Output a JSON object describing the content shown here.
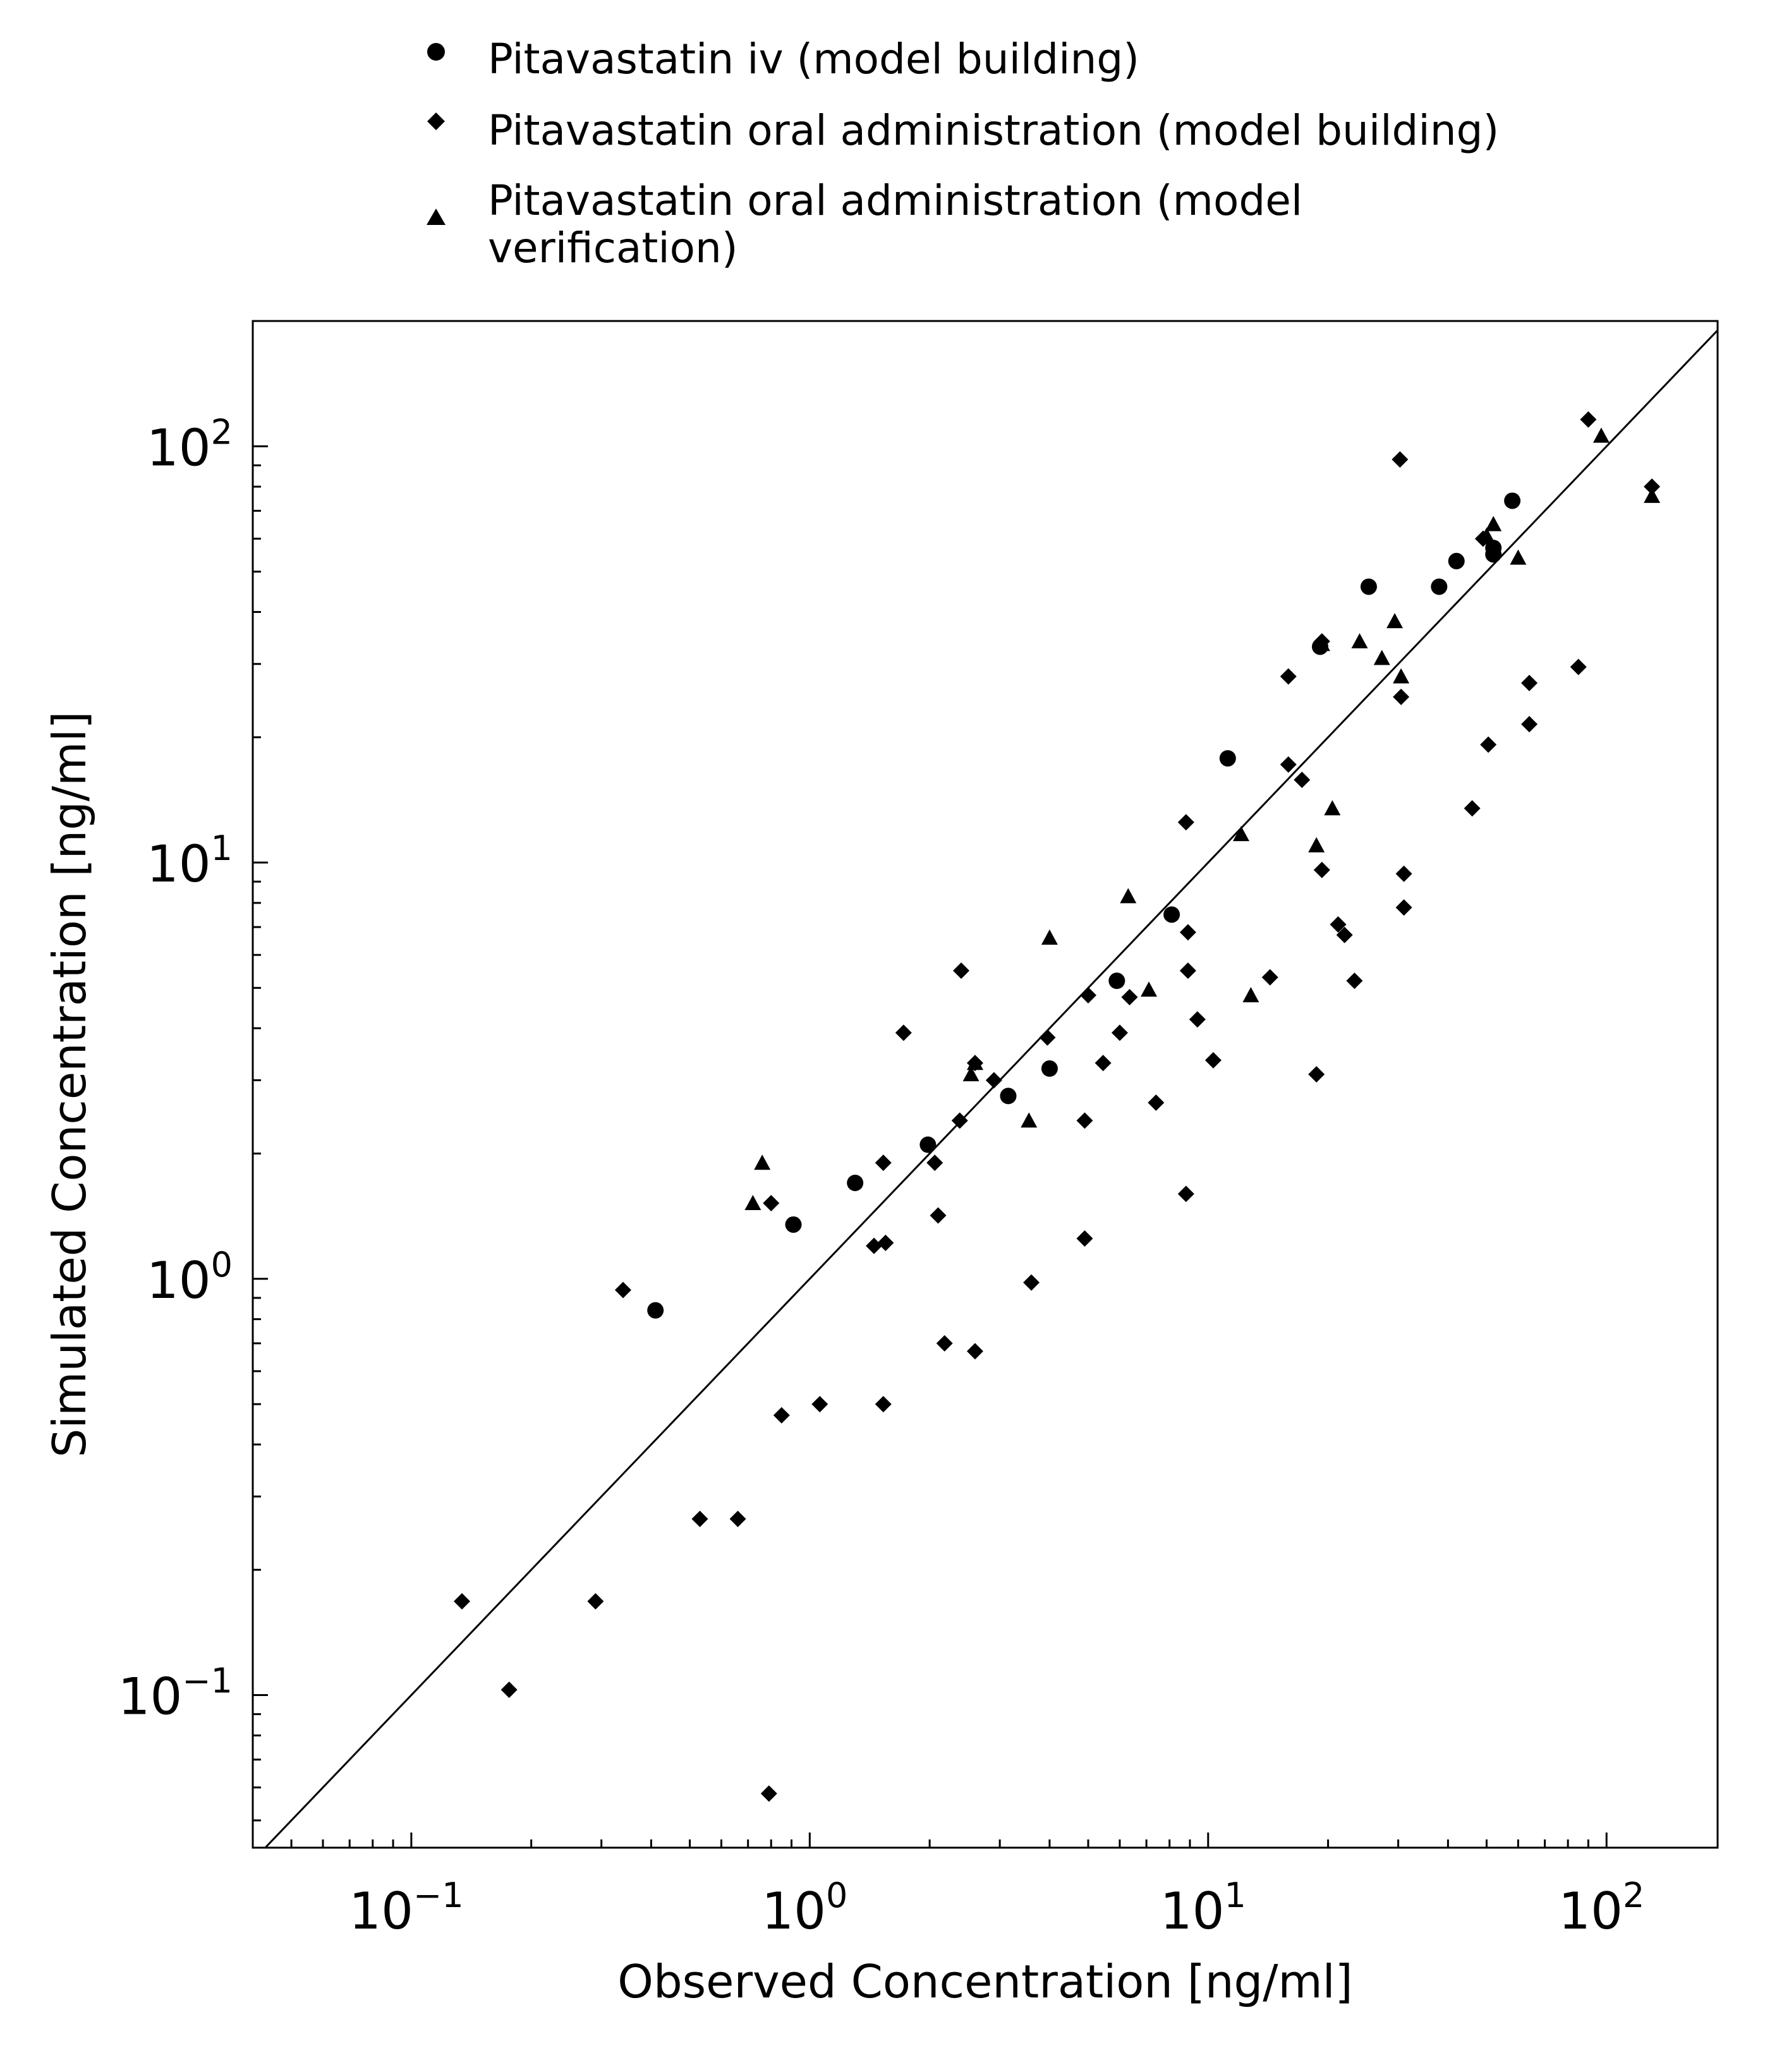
{
  "chart_data": {
    "type": "scatter",
    "title": "",
    "xlabel": "Observed Concentration [ng/ml]",
    "ylabel": "Simulated Concentration [ng/ml]",
    "xscale": "log",
    "yscale": "log",
    "xlim": [
      0.04,
      190
    ],
    "ylim": [
      0.043,
      200
    ],
    "grid": false,
    "legend_position": "above plot",
    "identity_line": true,
    "x_ticks": [
      {
        "base": "10",
        "exp": "−1",
        "value": 0.1
      },
      {
        "base": "10",
        "exp": "0",
        "value": 1
      },
      {
        "base": "10",
        "exp": "1",
        "value": 10
      },
      {
        "base": "10",
        "exp": "2",
        "value": 100
      }
    ],
    "y_ticks": [
      {
        "base": "10",
        "exp": "−1",
        "value": 0.1
      },
      {
        "base": "10",
        "exp": "0",
        "value": 1
      },
      {
        "base": "10",
        "exp": "1",
        "value": 10
      },
      {
        "base": "10",
        "exp": "2",
        "value": 100
      }
    ],
    "series": [
      {
        "name": "Pitavastatin iv (model building)",
        "marker": "circle",
        "color": "#000000",
        "points": [
          [
            0.41,
            0.84
          ],
          [
            0.91,
            1.35
          ],
          [
            1.3,
            1.7
          ],
          [
            1.98,
            2.1
          ],
          [
            3.15,
            2.75
          ],
          [
            4.0,
            3.2
          ],
          [
            5.9,
            5.2
          ],
          [
            8.1,
            7.5
          ],
          [
            11.2,
            17.8
          ],
          [
            19.1,
            33
          ],
          [
            25.3,
            46
          ],
          [
            38,
            46
          ],
          [
            42,
            53
          ],
          [
            52,
            55
          ],
          [
            52,
            57
          ],
          [
            58,
            74
          ]
        ]
      },
      {
        "name": "Pitavastatin oral administration (model building)",
        "marker": "diamond",
        "color": "#000000",
        "points": [
          [
            0.134,
            0.168
          ],
          [
            0.176,
            0.103
          ],
          [
            0.29,
            0.168
          ],
          [
            0.34,
            0.94
          ],
          [
            0.53,
            0.265
          ],
          [
            0.66,
            0.265
          ],
          [
            0.79,
            0.058
          ],
          [
            0.8,
            1.52
          ],
          [
            0.85,
            0.47
          ],
          [
            1.06,
            0.5
          ],
          [
            1.45,
            1.2
          ],
          [
            1.53,
            1.9
          ],
          [
            1.55,
            1.22
          ],
          [
            1.53,
            0.5
          ],
          [
            1.72,
            3.9
          ],
          [
            2.06,
            1.9
          ],
          [
            2.1,
            1.42
          ],
          [
            2.18,
            0.7
          ],
          [
            2.38,
            2.4
          ],
          [
            2.4,
            5.5
          ],
          [
            2.6,
            0.67
          ],
          [
            2.6,
            3.3
          ],
          [
            2.9,
            3.0
          ],
          [
            3.6,
            0.98
          ],
          [
            3.95,
            3.8
          ],
          [
            4.9,
            2.4
          ],
          [
            4.9,
            1.25
          ],
          [
            5.0,
            4.8
          ],
          [
            5.45,
            3.3
          ],
          [
            6.0,
            3.9
          ],
          [
            6.35,
            4.75
          ],
          [
            7.4,
            2.65
          ],
          [
            8.8,
            12.5
          ],
          [
            8.9,
            6.8
          ],
          [
            8.9,
            5.5
          ],
          [
            8.8,
            1.6
          ],
          [
            9.4,
            4.2
          ],
          [
            10.3,
            3.35
          ],
          [
            14.3,
            5.3
          ],
          [
            15.9,
            17.2
          ],
          [
            15.9,
            28.0
          ],
          [
            17.2,
            15.8
          ],
          [
            18.7,
            3.1
          ],
          [
            19.3,
            34.0
          ],
          [
            19.3,
            9.6
          ],
          [
            21.2,
            7.1
          ],
          [
            22.0,
            6.7
          ],
          [
            23.3,
            5.2
          ],
          [
            30.3,
            93.0
          ],
          [
            30.5,
            25.0
          ],
          [
            31.0,
            9.4
          ],
          [
            31.0,
            7.8
          ],
          [
            46.0,
            13.5
          ],
          [
            49.0,
            60.0
          ],
          [
            50.5,
            19.2
          ],
          [
            64.0,
            27.0
          ],
          [
            64.0,
            21.5
          ],
          [
            85.0,
            29.5
          ],
          [
            90.0,
            116.0
          ],
          [
            130.0,
            80.0
          ]
        ]
      },
      {
        "name": "Pitavastatin oral administration (model verification)",
        "marker": "triangle",
        "color": "#000000",
        "points": [
          [
            0.72,
            1.52
          ],
          [
            0.76,
            1.9
          ],
          [
            2.54,
            3.1
          ],
          [
            2.6,
            3.3
          ],
          [
            3.55,
            2.4
          ],
          [
            4.0,
            6.6
          ],
          [
            6.3,
            8.3
          ],
          [
            7.1,
            4.95
          ],
          [
            12.1,
            11.7
          ],
          [
            12.8,
            4.8
          ],
          [
            18.7,
            11.0
          ],
          [
            19.3,
            33.5
          ],
          [
            20.5,
            13.5
          ],
          [
            24.0,
            34.0
          ],
          [
            27.3,
            31.0
          ],
          [
            29.4,
            38.0
          ],
          [
            30.5,
            28.0
          ],
          [
            50.0,
            61.0
          ],
          [
            52.0,
            65.0
          ],
          [
            60.0,
            54.0
          ],
          [
            97.0,
            106.0
          ],
          [
            130.0,
            76.0
          ]
        ]
      }
    ]
  }
}
